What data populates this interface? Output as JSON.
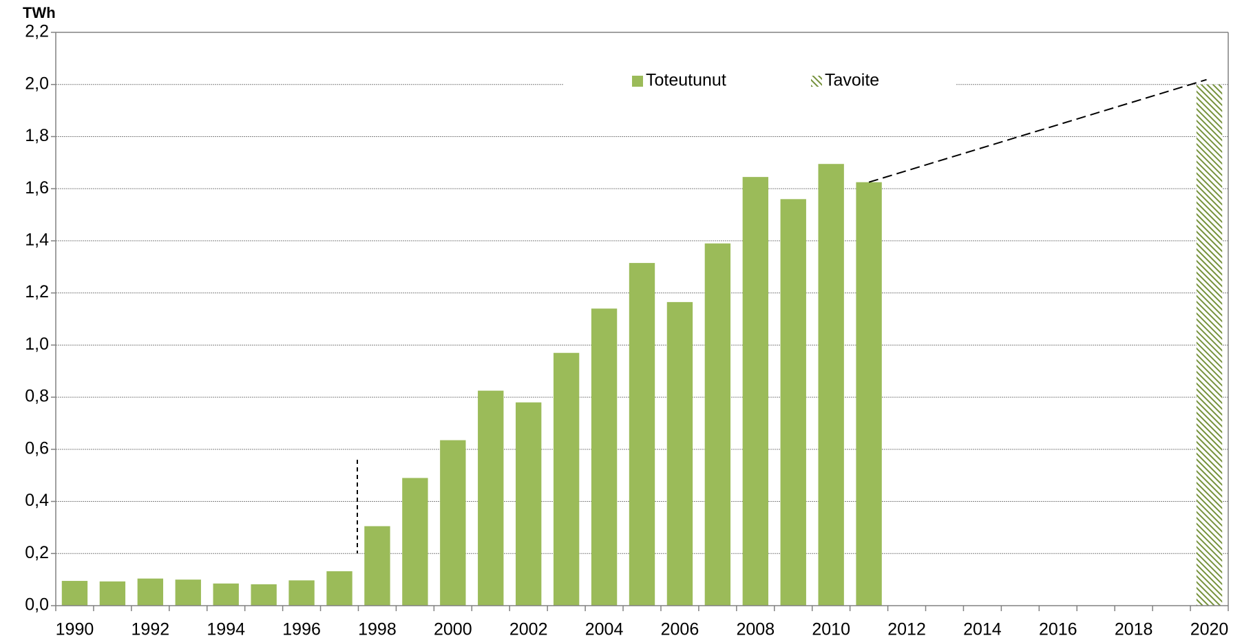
{
  "chart_data": {
    "type": "bar",
    "y_label": "TWh",
    "categories": [
      "1990",
      null,
      "1992",
      null,
      "1994",
      null,
      "1996",
      null,
      "1998",
      null,
      "2000",
      null,
      "2002",
      null,
      "2004",
      null,
      "2006",
      null,
      "2008",
      null,
      "2010",
      null,
      "2012",
      null,
      "2014",
      null,
      "2016",
      null,
      "2018",
      null,
      "2020"
    ],
    "series": [
      {
        "name": "Toteutunut",
        "color": "#9bbb59",
        "pattern": "solid",
        "values": [
          0.095,
          0.093,
          0.104,
          0.1,
          0.085,
          0.082,
          0.097,
          0.132,
          0.305,
          0.49,
          0.635,
          0.825,
          0.78,
          0.97,
          1.14,
          1.315,
          1.165,
          1.39,
          1.645,
          1.56,
          1.695,
          1.625,
          null,
          null,
          null,
          null,
          null,
          null,
          null,
          null,
          null
        ]
      },
      {
        "name": "Tavoite",
        "color": "#76923c",
        "pattern": "hatch",
        "values": [
          null,
          null,
          null,
          null,
          null,
          null,
          null,
          null,
          null,
          null,
          null,
          null,
          null,
          null,
          null,
          null,
          null,
          null,
          null,
          null,
          null,
          null,
          null,
          null,
          null,
          null,
          null,
          null,
          null,
          null,
          2.0
        ]
      }
    ],
    "ylim": [
      0,
      2.2
    ],
    "yticks": [
      {
        "value": 0,
        "label": "0,0"
      },
      {
        "value": 0.2,
        "label": "0,2"
      },
      {
        "value": 0.4,
        "label": "0,4"
      },
      {
        "value": 0.6,
        "label": "0,6"
      },
      {
        "value": 0.8,
        "label": "0,8"
      },
      {
        "value": 1.0,
        "label": "1,0"
      },
      {
        "value": 1.2,
        "label": "1,2"
      },
      {
        "value": 1.4,
        "label": "1,4"
      },
      {
        "value": 1.6,
        "label": "1,6"
      },
      {
        "value": 1.8,
        "label": "1,8"
      },
      {
        "value": 2.0,
        "label": "2,0"
      },
      {
        "value": 2.2,
        "label": "2,2"
      }
    ],
    "grid": true,
    "legend": "top"
  }
}
